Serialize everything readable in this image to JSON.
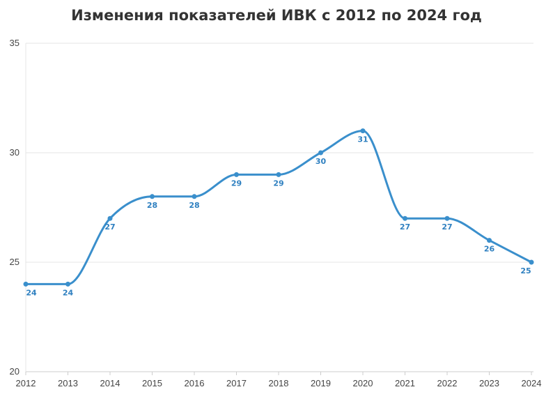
{
  "title": "Изменения показателей ИВК с 2012 по 2024 год",
  "colors": {
    "line": "#3a8fcc",
    "grid": "#e6e6e6",
    "axis": "#cccccc",
    "text": "#444444",
    "label": "#2f80c0"
  },
  "chart_data": {
    "type": "line",
    "title": "Изменения показателей ИВК с 2012 по 2024 год",
    "xlabel": "",
    "ylabel": "",
    "categories": [
      "2012",
      "2013",
      "2014",
      "2015",
      "2016",
      "2017",
      "2018",
      "2019",
      "2020",
      "2021",
      "2022",
      "2023",
      "2024"
    ],
    "series": [
      {
        "values": [
          24,
          24,
          27,
          28,
          28,
          29,
          29,
          30,
          31,
          27,
          27,
          26,
          25
        ]
      }
    ],
    "ylim": [
      20,
      35
    ],
    "yticks": [
      20,
      25,
      30,
      35
    ],
    "grid": true,
    "legend": "none",
    "data_labels": true,
    "curve": "smooth"
  }
}
